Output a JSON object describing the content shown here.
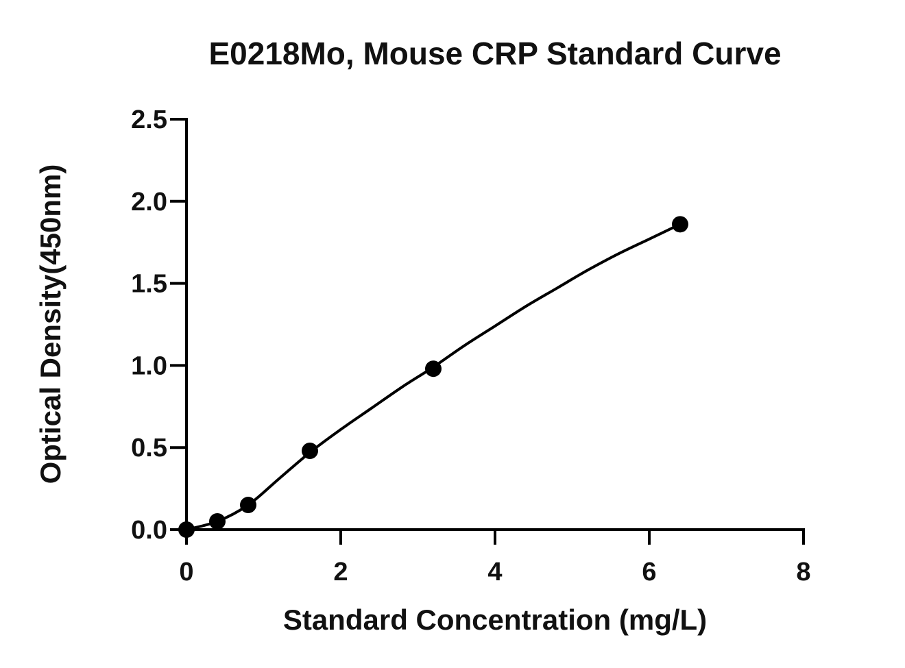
{
  "chart_data": {
    "type": "scatter",
    "title": "E0218Mo, Mouse CRP Standard Curve",
    "xlabel": "Standard Concentration (mg/L)",
    "ylabel": "Optical Density(450nm)",
    "xlim": [
      0,
      8
    ],
    "ylim": [
      0,
      2.5
    ],
    "xticks": [
      0,
      2,
      4,
      6,
      8
    ],
    "yticks": [
      0.0,
      0.5,
      1.0,
      1.5,
      2.0,
      2.5
    ],
    "xtick_labels": [
      "0",
      "2",
      "4",
      "6",
      "8"
    ],
    "ytick_labels": [
      "0.0",
      "0.5",
      "1.0",
      "1.5",
      "2.0",
      "2.5"
    ],
    "grid": false,
    "legend": "none",
    "series": [
      {
        "x": [
          0,
          0.4,
          0.8,
          1.6,
          3.2,
          6.4
        ],
        "y": [
          0.0,
          0.05,
          0.15,
          0.48,
          0.98,
          1.86
        ]
      }
    ],
    "fit_curve": {
      "x": [
        0,
        0.4,
        0.8,
        1.2,
        1.6,
        2.0,
        2.4,
        2.8,
        3.2,
        3.6,
        4.0,
        4.4,
        4.8,
        5.2,
        5.6,
        6.0,
        6.4
      ],
      "y": [
        0.0,
        0.05,
        0.15,
        0.31,
        0.47,
        0.61,
        0.74,
        0.87,
        0.99,
        1.12,
        1.24,
        1.36,
        1.47,
        1.58,
        1.68,
        1.77,
        1.86
      ]
    },
    "colors": {
      "marker": "#000000",
      "line": "#000000",
      "text": "#111111"
    }
  }
}
